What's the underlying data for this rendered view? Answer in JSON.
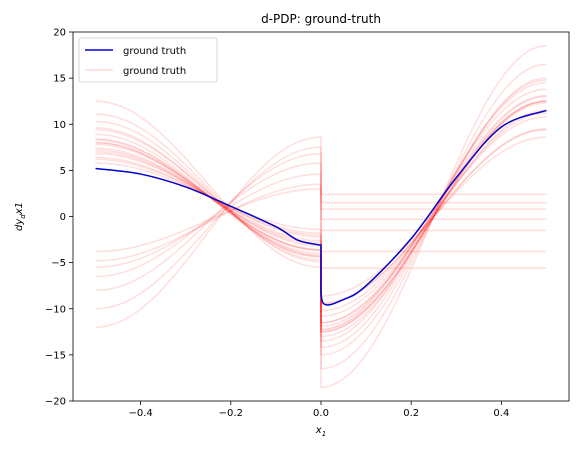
{
  "chart_data": {
    "type": "line",
    "title": "d-PDP: ground-truth",
    "xlabel": "x",
    "xlabel_sub": "1",
    "ylabel": "dy",
    "ylabel_sub": "d",
    "ylabel_tail": "x1",
    "xlim": [
      -0.55,
      0.55
    ],
    "ylim": [
      -20,
      20
    ],
    "xticks": [
      -0.4,
      -0.2,
      0.0,
      0.2,
      0.4
    ],
    "xtick_labels": [
      "−0.4",
      "−0.2",
      "0.0",
      "0.2",
      "0.4"
    ],
    "yticks": [
      -20,
      -15,
      -10,
      -5,
      0,
      5,
      10,
      15,
      20
    ],
    "ytick_labels": [
      "−20",
      "−15",
      "−10",
      "−5",
      "0",
      "5",
      "10",
      "15",
      "20"
    ],
    "grid": false,
    "legend": {
      "placement": "top-left",
      "entries": [
        {
          "label": "ground truth",
          "color": "#0000cc",
          "opacity": 1.0
        },
        {
          "label": "ground truth",
          "color": "#ff0000",
          "opacity": 0.15
        }
      ]
    },
    "main_series": {
      "color": "#0000cc",
      "x": [
        -0.5,
        -0.4,
        -0.3,
        -0.2,
        -0.1,
        -0.05,
        0.0,
        0.0,
        0.005,
        0.05,
        0.1,
        0.2,
        0.3,
        0.4,
        0.5
      ],
      "y": [
        5.2,
        4.6,
        3.2,
        1.1,
        -1.1,
        -2.6,
        -3.1,
        -6.0,
        -9.4,
        -9.0,
        -7.5,
        -2.4,
        4.2,
        9.7,
        11.5
      ]
    },
    "ice_curves": {
      "color": "#ff0000",
      "opacity": 0.13,
      "sinusoidal": [
        {
          "left_amp": 4.0,
          "left_offset": 2.2,
          "right_amp": 9.4,
          "right_offset": 0.0
        },
        {
          "left_amp": 4.5,
          "left_offset": 2.3,
          "right_amp": 10.5,
          "right_offset": 0.3
        },
        {
          "left_amp": 4.8,
          "left_offset": 2.2,
          "right_amp": 11.0,
          "right_offset": 0.2
        },
        {
          "left_amp": 5.2,
          "left_offset": 2.2,
          "right_amp": 12.0,
          "right_offset": 0.5
        },
        {
          "left_amp": 5.5,
          "left_offset": 2.3,
          "right_amp": 12.5,
          "right_offset": 0.6
        },
        {
          "left_amp": 6.0,
          "left_offset": 2.3,
          "right_amp": 13.0,
          "right_offset": 0.8
        },
        {
          "left_amp": 6.6,
          "left_offset": 2.3,
          "right_amp": 14.0,
          "right_offset": 0.5
        },
        {
          "left_amp": 7.0,
          "left_offset": 2.6,
          "right_amp": 14.5,
          "right_offset": 0.3
        },
        {
          "left_amp": 7.5,
          "left_offset": 2.8,
          "right_amp": 15.0,
          "right_offset": 0.0
        },
        {
          "left_amp": 8.0,
          "left_offset": 3.1,
          "right_amp": 16.5,
          "right_offset": 0.0
        },
        {
          "left_amp": 9.0,
          "left_offset": 3.5,
          "right_amp": 18.5,
          "right_offset": 0.0
        },
        {
          "left_amp": 3.6,
          "left_offset": 2.2,
          "right_amp": 8.6,
          "right_offset": 0.0
        },
        {
          "left_amp": 4.2,
          "left_offset": 2.2,
          "right_amp": 9.5,
          "right_offset": 0.0
        },
        {
          "left_amp": 5.0,
          "left_offset": 2.2,
          "right_amp": 11.5,
          "right_offset": 0.0
        },
        {
          "left_amp": 6.2,
          "left_offset": 2.2,
          "right_amp": 12.3,
          "right_offset": 0.0
        },
        {
          "left_amp": 6.8,
          "left_offset": 2.6,
          "right_amp": 13.0,
          "right_offset": 0.0
        },
        {
          "left_amp": 5.8,
          "left_offset": 2.2,
          "right_amp": 12.5,
          "right_offset": 0.0
        },
        {
          "left_amp": 5.8,
          "left_offset": 2.2,
          "right_amp": 12.5,
          "right_offset": 0.0
        }
      ],
      "rising_left": [
        {
          "left_start": -12.0,
          "left_end": 8.6,
          "right_level": 2.4
        },
        {
          "left_start": -10.0,
          "left_end": 7.5,
          "right_level": 1.5
        },
        {
          "left_start": -8.0,
          "left_end": 6.8,
          "right_level": 0.8
        },
        {
          "left_start": -6.5,
          "left_end": 5.8,
          "right_level": -0.3
        },
        {
          "left_start": -5.5,
          "left_end": 4.6,
          "right_level": -1.5
        },
        {
          "left_start": -4.8,
          "left_end": 3.5,
          "right_level": -3.8
        },
        {
          "left_start": -3.8,
          "left_end": 3.0,
          "right_level": -5.6
        }
      ]
    }
  }
}
